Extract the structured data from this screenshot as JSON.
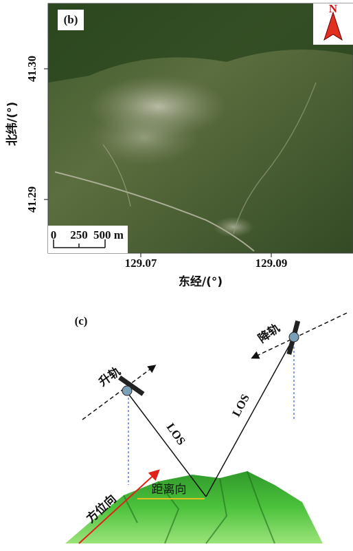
{
  "panel_b": {
    "label": "(b)",
    "north": "N",
    "y_axis_label": "北纬/(°)",
    "x_axis_label": "东经/(°)",
    "y_ticks": [
      "41.30",
      "41.29"
    ],
    "x_ticks": [
      "129.07",
      "129.09"
    ],
    "scale_bar": [
      "0",
      "250",
      "500 m"
    ]
  },
  "panel_c": {
    "label": "(c)",
    "ascending": "升轨",
    "descending": "降轨",
    "los_left": "LOS",
    "los_right": "LOS",
    "range": "距离向",
    "azimuth": "方位向"
  }
}
